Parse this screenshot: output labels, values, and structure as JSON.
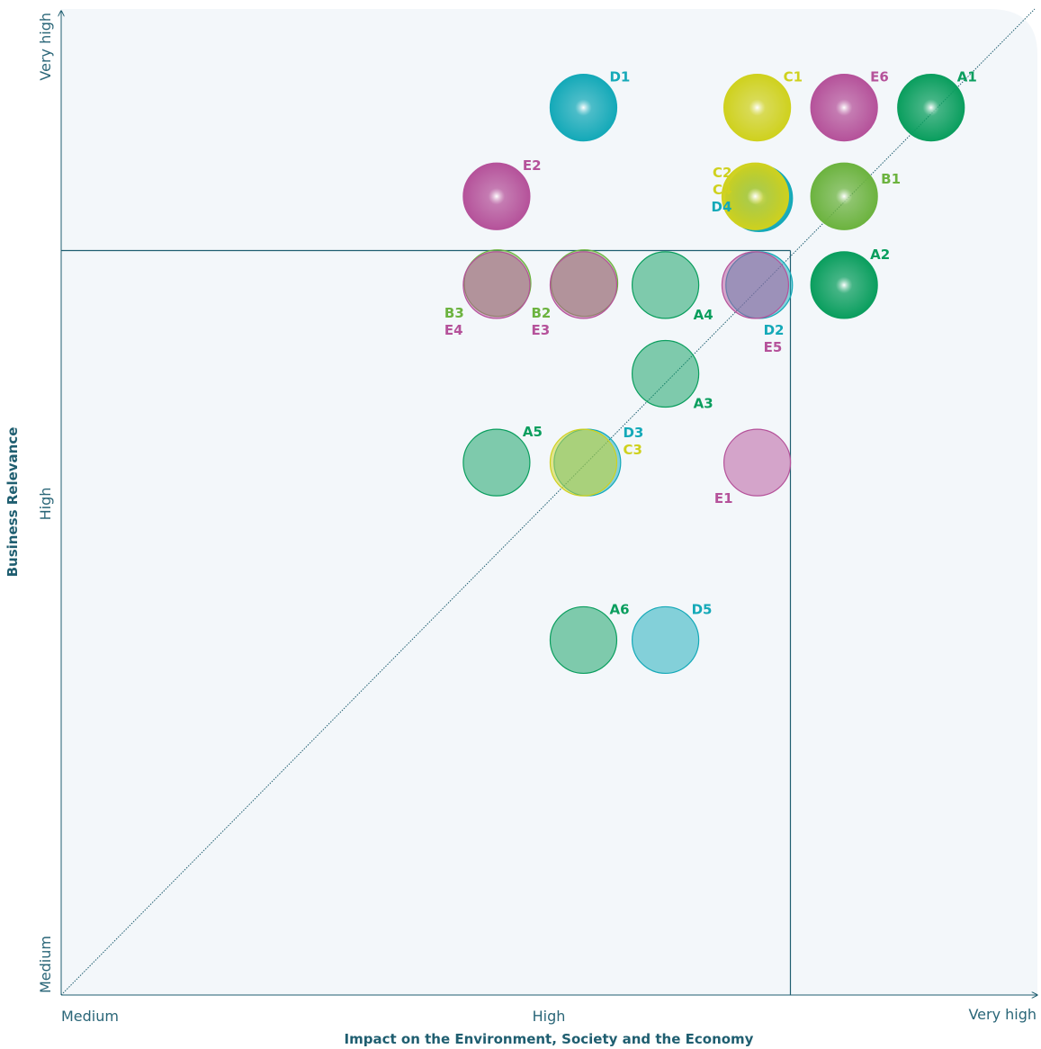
{
  "chart_data": {
    "type": "scatter",
    "title": "",
    "xlabel": "Impact on the Environment, Society and the Economy",
    "ylabel": "Business Relevance",
    "x_ticks": [
      "Medium",
      "High",
      "Very high"
    ],
    "y_ticks": [
      "Medium",
      "High",
      "Very high"
    ],
    "xlim": [
      0,
      1
    ],
    "ylim": [
      0,
      1
    ],
    "threshold": {
      "x": 0.747,
      "y": 0.755
    },
    "colors": {
      "A": "#0a9e5e",
      "B": "#6cb33f",
      "C": "#cfd11e",
      "D": "#14a9b8",
      "E": "#b5529a",
      "frame": "#1f5e70",
      "plot_bg": "#f3f7fa"
    },
    "points": [
      {
        "id": "D1",
        "group": "D",
        "x": 0.535,
        "y": 0.9,
        "style": "strong",
        "label_pos": "ne"
      },
      {
        "id": "C1",
        "group": "C",
        "x": 0.713,
        "y": 0.9,
        "style": "strong",
        "label_pos": "ne"
      },
      {
        "id": "E6",
        "group": "E",
        "x": 0.802,
        "y": 0.9,
        "style": "strong",
        "label_pos": "ne"
      },
      {
        "id": "A1",
        "group": "A",
        "x": 0.891,
        "y": 0.9,
        "style": "strong",
        "label_pos": "ne"
      },
      {
        "id": "E2",
        "group": "E",
        "x": 0.446,
        "y": 0.81,
        "style": "strong",
        "label_pos": "ne"
      },
      {
        "id": "B1",
        "group": "B",
        "x": 0.802,
        "y": 0.81,
        "style": "strong",
        "label_pos": "e"
      },
      {
        "id": "D4",
        "group": "D",
        "x": 0.715,
        "y": 0.808,
        "style": "strong",
        "label_pos": "none"
      },
      {
        "id": "C4",
        "group": "C",
        "x": 0.711,
        "y": 0.81,
        "style": "strong",
        "label_pos": "none"
      },
      {
        "id": "A2",
        "group": "A",
        "x": 0.802,
        "y": 0.72,
        "style": "strong",
        "label_pos": "ne"
      },
      {
        "id": "B3",
        "group": "B",
        "x": 0.447,
        "y": 0.722,
        "style": "soft",
        "label_pos": "none"
      },
      {
        "id": "E4",
        "group": "E",
        "x": 0.446,
        "y": 0.72,
        "style": "soft",
        "label_pos": "none"
      },
      {
        "id": "B2",
        "group": "B",
        "x": 0.536,
        "y": 0.722,
        "style": "soft",
        "label_pos": "none"
      },
      {
        "id": "E3",
        "group": "E",
        "x": 0.535,
        "y": 0.72,
        "style": "soft",
        "label_pos": "none"
      },
      {
        "id": "A4",
        "group": "A",
        "x": 0.619,
        "y": 0.72,
        "style": "soft",
        "label_pos": "se"
      },
      {
        "id": "D2",
        "group": "D",
        "x": 0.715,
        "y": 0.72,
        "style": "soft",
        "label_pos": "none"
      },
      {
        "id": "E5",
        "group": "E",
        "x": 0.711,
        "y": 0.72,
        "style": "soft",
        "label_pos": "none"
      },
      {
        "id": "A3",
        "group": "A",
        "x": 0.619,
        "y": 0.63,
        "style": "soft",
        "label_pos": "se"
      },
      {
        "id": "A5",
        "group": "A",
        "x": 0.446,
        "y": 0.54,
        "style": "soft",
        "label_pos": "ne"
      },
      {
        "id": "D3",
        "group": "D",
        "x": 0.539,
        "y": 0.54,
        "style": "soft",
        "label_pos": "none"
      },
      {
        "id": "C3",
        "group": "C",
        "x": 0.535,
        "y": 0.54,
        "style": "soft",
        "label_pos": "none"
      },
      {
        "id": "E1",
        "group": "E",
        "x": 0.713,
        "y": 0.54,
        "style": "soft",
        "label_pos": "sw"
      },
      {
        "id": "A6",
        "group": "A",
        "x": 0.535,
        "y": 0.36,
        "style": "soft",
        "label_pos": "ne"
      },
      {
        "id": "D5",
        "group": "D",
        "x": 0.619,
        "y": 0.36,
        "style": "soft",
        "label_pos": "ne"
      }
    ],
    "stacked_labels": [
      {
        "lines": [
          {
            "text": "C2",
            "group": "C"
          },
          {
            "text": "C4",
            "group": "C"
          },
          {
            "text": "D4",
            "group": "D"
          }
        ],
        "x": 0.711,
        "y": 0.81,
        "side": "w"
      },
      {
        "lines": [
          {
            "text": "B3",
            "group": "B"
          },
          {
            "text": "E4",
            "group": "E"
          }
        ],
        "x": 0.446,
        "y": 0.72,
        "side": "sw"
      },
      {
        "lines": [
          {
            "text": "B2",
            "group": "B"
          },
          {
            "text": "E3",
            "group": "E"
          }
        ],
        "x": 0.535,
        "y": 0.72,
        "side": "sw"
      },
      {
        "lines": [
          {
            "text": "D2",
            "group": "D"
          },
          {
            "text": "E5",
            "group": "E"
          }
        ],
        "x": 0.713,
        "y": 0.72,
        "side": "se"
      },
      {
        "lines": [
          {
            "text": "D3",
            "group": "D"
          },
          {
            "text": "C3",
            "group": "C"
          }
        ],
        "x": 0.535,
        "y": 0.54,
        "side": "ne"
      }
    ]
  }
}
